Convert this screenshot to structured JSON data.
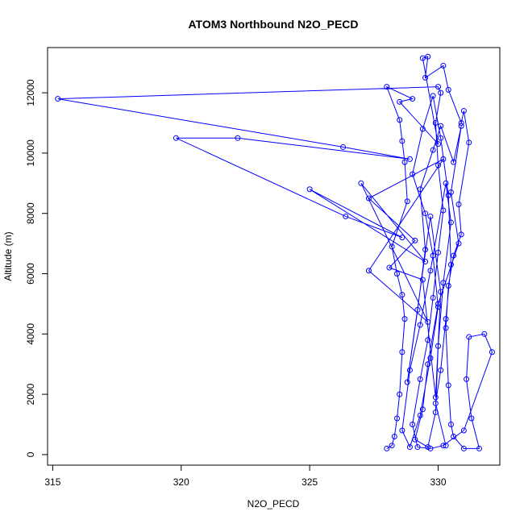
{
  "chart_data": {
    "type": "line",
    "title": "ATOM3 Northbound N2O_PECD",
    "xlabel": "N2O_PECD",
    "ylabel": "Altitude (m)",
    "xlim": [
      314.8,
      332.4
    ],
    "ylim": [
      -350,
      13500
    ],
    "xticks": [
      315,
      320,
      325,
      330
    ],
    "yticks": [
      0,
      2000,
      4000,
      6000,
      8000,
      10000,
      12000
    ],
    "grid": false,
    "markers": "open-circle",
    "color": "#0000ff",
    "series": [
      {
        "values": [
          [
            328.0,
            200
          ],
          [
            328.2,
            300
          ],
          [
            328.3,
            600
          ],
          [
            328.4,
            1200
          ],
          [
            328.5,
            2000
          ],
          [
            328.6,
            3400
          ],
          [
            328.7,
            4500
          ],
          [
            328.6,
            5300
          ],
          [
            328.4,
            6000
          ],
          [
            328.2,
            6900
          ],
          [
            328.8,
            8400
          ],
          [
            328.7,
            9700
          ],
          [
            328.6,
            10400
          ],
          [
            328.5,
            11100
          ],
          [
            328.0,
            12200
          ],
          [
            329.0,
            11800
          ],
          [
            328.5,
            11700
          ],
          [
            330.0,
            10300
          ],
          [
            329.4,
            13150
          ],
          [
            329.6,
            13200
          ],
          [
            329.5,
            12500
          ],
          [
            330.2,
            12900
          ],
          [
            330.4,
            12100
          ],
          [
            330.9,
            11000
          ],
          [
            331.0,
            11400
          ],
          [
            331.2,
            10350
          ],
          [
            330.8,
            8300
          ],
          [
            330.9,
            7300
          ],
          [
            330.6,
            6600
          ],
          [
            330.4,
            5600
          ],
          [
            330.3,
            4200
          ],
          [
            330.4,
            2300
          ],
          [
            330.5,
            1000
          ],
          [
            330.6,
            600
          ],
          [
            331.0,
            200
          ],
          [
            331.6,
            200
          ],
          [
            331.3,
            1200
          ],
          [
            331.1,
            2500
          ],
          [
            331.2,
            3900
          ],
          [
            331.8,
            4000
          ],
          [
            332.1,
            3400
          ],
          [
            331.0,
            800
          ],
          [
            330.2,
            300
          ],
          [
            329.7,
            200
          ],
          [
            329.2,
            250
          ],
          [
            329.0,
            1000
          ],
          [
            329.3,
            2500
          ],
          [
            329.6,
            3800
          ],
          [
            329.8,
            5200
          ],
          [
            330.0,
            6700
          ],
          [
            330.2,
            8100
          ],
          [
            330.0,
            9600
          ],
          [
            329.9,
            11000
          ],
          [
            330.1,
            12000
          ],
          [
            330.0,
            12200
          ],
          [
            315.2,
            11800
          ],
          [
            326.3,
            10200
          ],
          [
            328.9,
            9800
          ],
          [
            322.2,
            10500
          ],
          [
            319.8,
            10500
          ],
          [
            326.4,
            7900
          ],
          [
            328.6,
            7200
          ],
          [
            325.0,
            8800
          ],
          [
            329.5,
            6400
          ],
          [
            327.0,
            9000
          ],
          [
            329.6,
            4400
          ],
          [
            327.3,
            6100
          ],
          [
            330.2,
            9800
          ],
          [
            327.3,
            8500
          ],
          [
            329.1,
            7100
          ],
          [
            328.1,
            6200
          ],
          [
            329.4,
            5800
          ],
          [
            329.9,
            1900
          ],
          [
            330.1,
            5400
          ],
          [
            329.7,
            7900
          ],
          [
            328.8,
            2400
          ],
          [
            329.2,
            4800
          ],
          [
            329.5,
            6800
          ],
          [
            329.3,
            8800
          ],
          [
            329.8,
            10100
          ],
          [
            330.1,
            10900
          ],
          [
            330.6,
            9700
          ],
          [
            330.9,
            10900
          ],
          [
            330.5,
            8700
          ],
          [
            330.8,
            7000
          ],
          [
            330.0,
            5000
          ],
          [
            329.6,
            3000
          ],
          [
            329.4,
            1500
          ],
          [
            329.1,
            500
          ],
          [
            329.6,
            250
          ],
          [
            329.9,
            1400
          ],
          [
            330.0,
            3600
          ],
          [
            330.2,
            5700
          ],
          [
            330.5,
            7700
          ],
          [
            330.3,
            9000
          ],
          [
            329.7,
            6100
          ],
          [
            329.3,
            4300
          ],
          [
            328.9,
            2800
          ],
          [
            328.6,
            800
          ],
          [
            328.9,
            250
          ],
          [
            329.3,
            1300
          ],
          [
            329.7,
            3200
          ],
          [
            330.0,
            4900
          ],
          [
            329.8,
            6600
          ],
          [
            329.5,
            8000
          ],
          [
            329.0,
            9300
          ],
          [
            329.4,
            10800
          ],
          [
            329.8,
            11900
          ],
          [
            330.1,
            10500
          ],
          [
            330.4,
            8600
          ],
          [
            330.5,
            6300
          ],
          [
            330.3,
            4500
          ],
          [
            330.1,
            2800
          ],
          [
            329.9,
            1700
          ],
          [
            330.3,
            300
          ]
        ]
      }
    ]
  }
}
